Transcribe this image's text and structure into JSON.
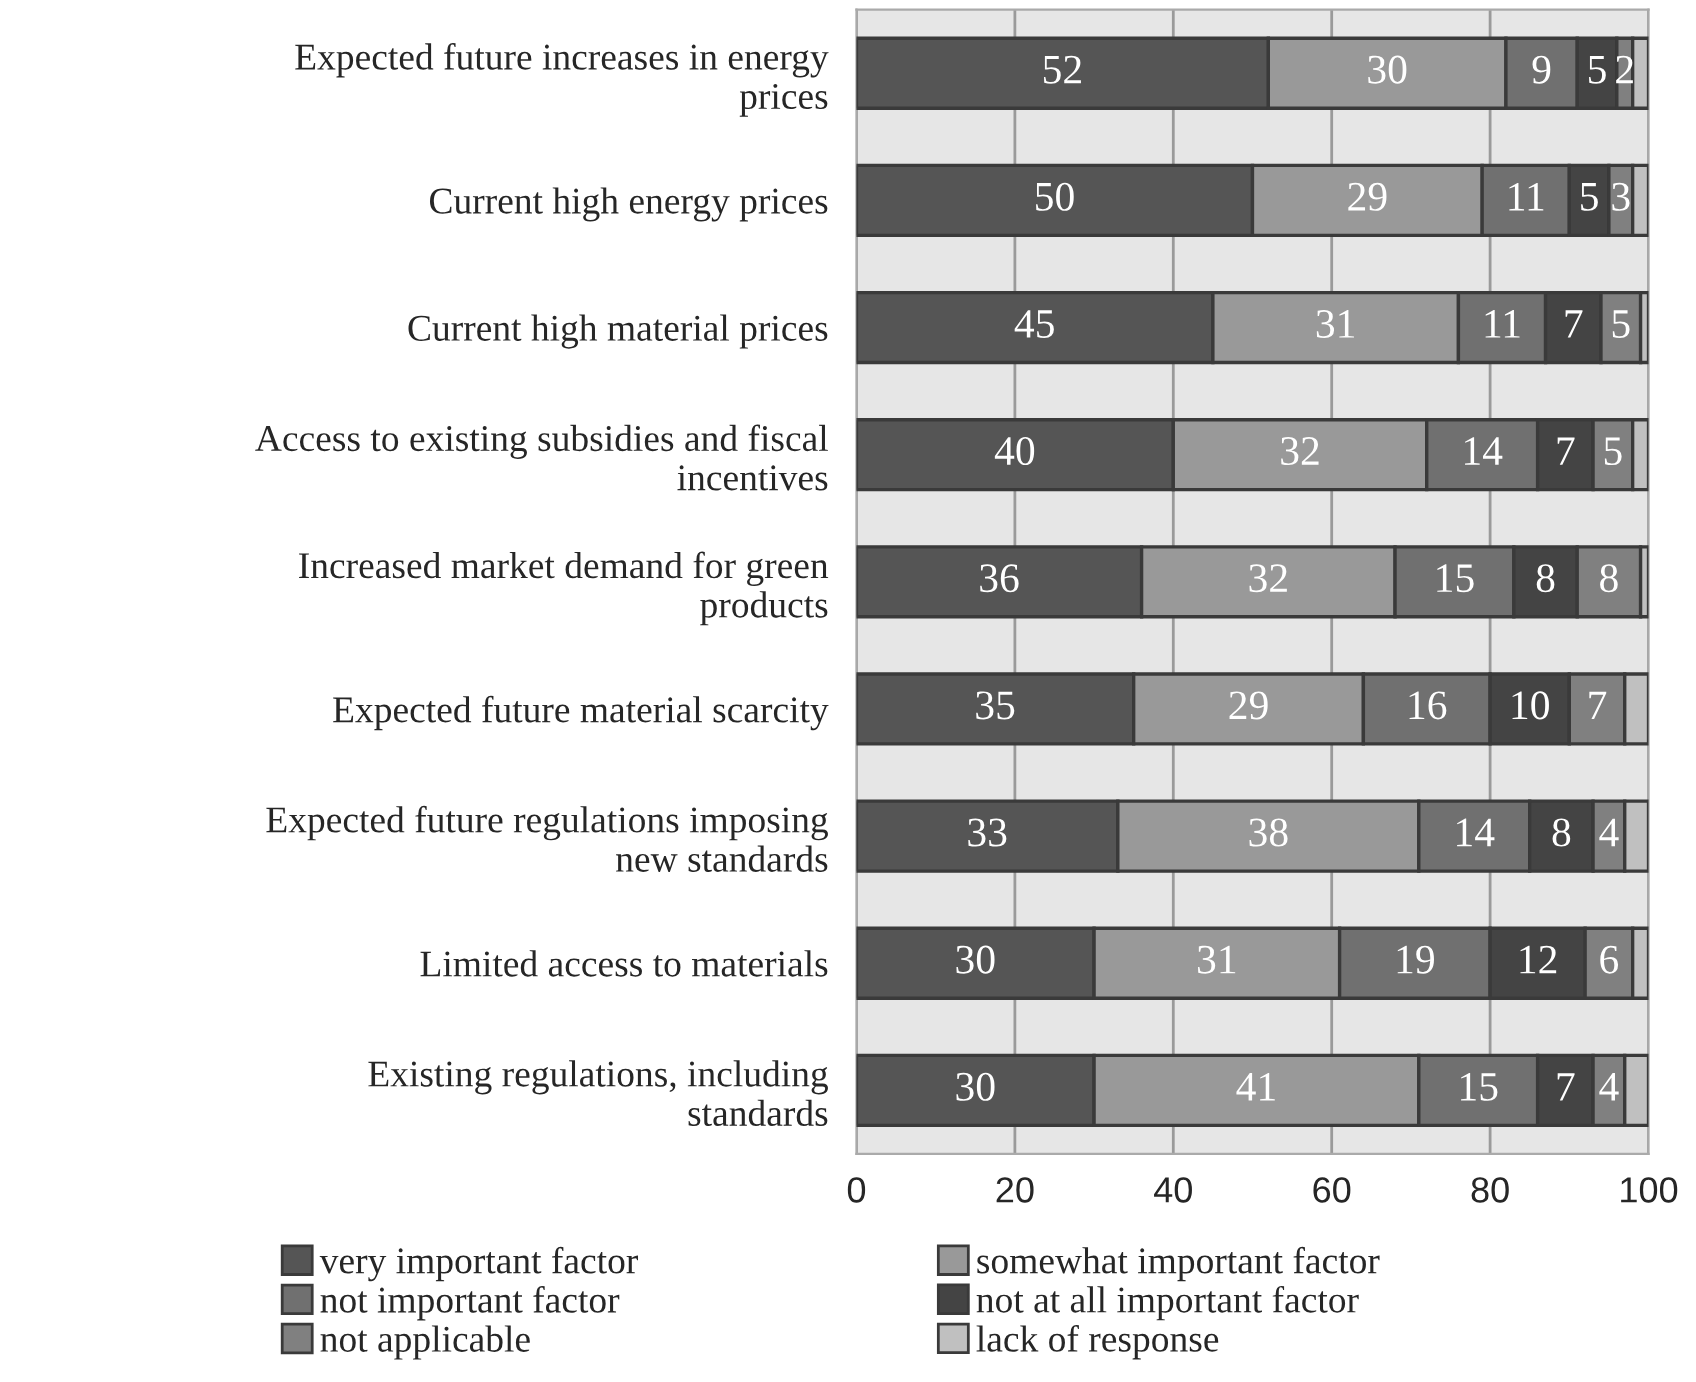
{
  "chart_data": {
    "type": "bar",
    "orientation": "horizontal",
    "stacked": true,
    "categories": [
      "Expected future increases in energy\nprices",
      "Current high energy prices",
      "Current high material prices",
      "Access to existing subsidies and fiscal\nincentives",
      "Increased market demand for green\nproducts",
      "Expected future material scarcity",
      "Expected future regulations imposing\nnew standards",
      "Limited access to materials",
      "Existing regulations, including\nstandards"
    ],
    "series": [
      {
        "name": "very important factor",
        "color": "#555555",
        "values": [
          52,
          50,
          45,
          40,
          36,
          35,
          33,
          30,
          30
        ],
        "value_labels": [
          "52",
          "50",
          "45",
          "40",
          "36",
          "35",
          "33",
          "30",
          "30"
        ]
      },
      {
        "name": "somewhat important factor",
        "color": "#999999",
        "values": [
          30,
          29,
          31,
          32,
          32,
          29,
          38,
          31,
          41
        ],
        "value_labels": [
          "30",
          "29",
          "31",
          "32",
          "32",
          "29",
          "38",
          "31",
          "41"
        ]
      },
      {
        "name": "not important factor",
        "color": "#707070",
        "values": [
          9,
          11,
          11,
          14,
          15,
          16,
          14,
          19,
          15
        ],
        "value_labels": [
          "9",
          "11",
          "11",
          "14",
          "15",
          "16",
          "14",
          "19",
          "15"
        ]
      },
      {
        "name": "not at all important factor",
        "color": "#444444",
        "values": [
          5,
          5,
          7,
          7,
          8,
          10,
          8,
          12,
          7
        ],
        "value_labels": [
          "5",
          "5",
          "7",
          "7",
          "8",
          "10",
          "8",
          "12",
          "7"
        ]
      },
      {
        "name": "not applicable",
        "color": "#808080",
        "values": [
          2,
          3,
          5,
          5,
          8,
          7,
          4,
          6,
          4
        ],
        "value_labels": [
          "2",
          "3",
          "5",
          "5",
          "8",
          "7",
          "4",
          "6",
          "4"
        ]
      },
      {
        "name": "lack of response",
        "color": "#c0c0c0",
        "values": [
          2,
          2,
          1,
          2,
          1,
          3,
          3,
          2,
          3
        ],
        "value_labels": [
          null,
          null,
          null,
          null,
          null,
          null,
          null,
          null,
          null
        ]
      }
    ],
    "xlim": [
      0,
      100
    ],
    "xticks": [
      0,
      20,
      40,
      60,
      80,
      100
    ],
    "grid": "x",
    "legend": "bottom"
  }
}
